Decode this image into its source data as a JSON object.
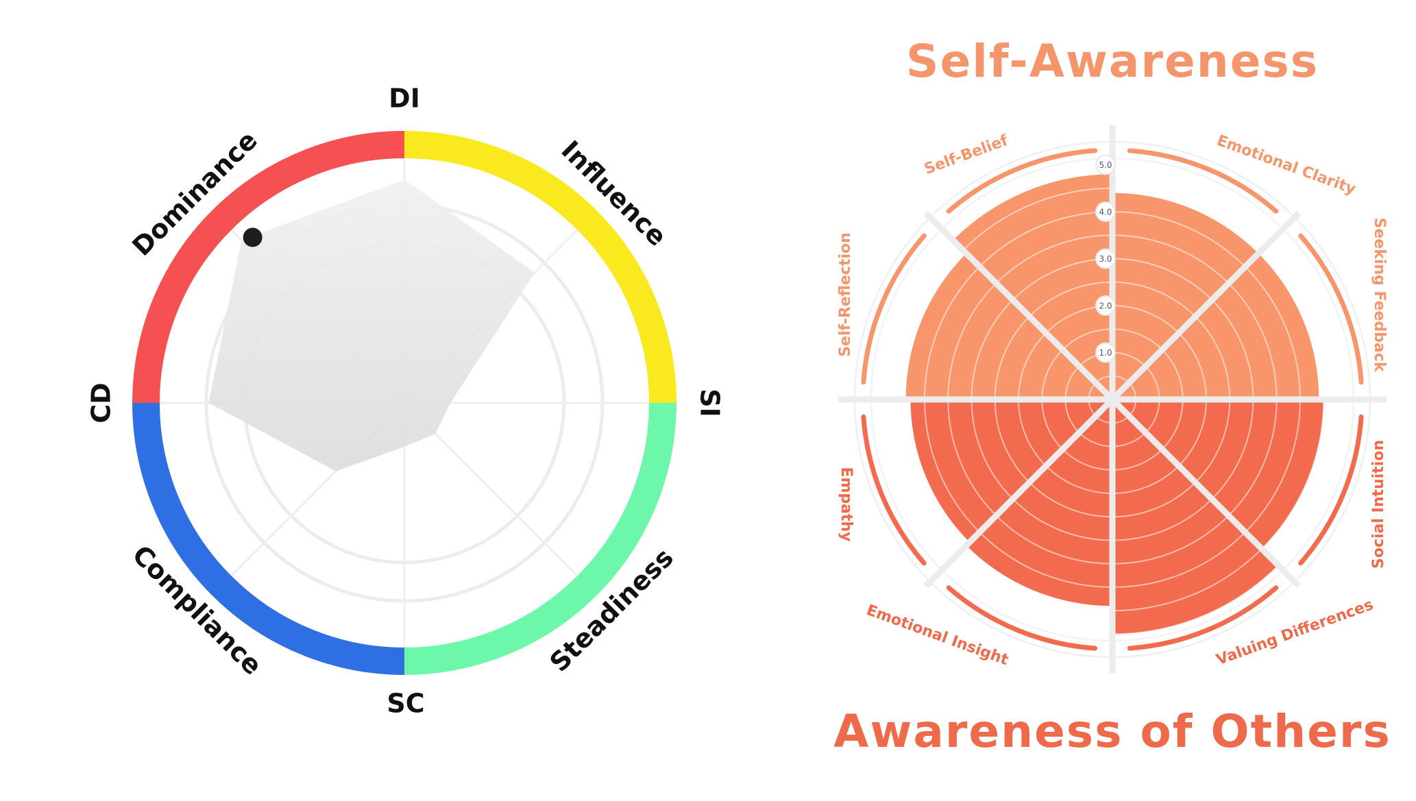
{
  "chart_data": [
    {
      "type": "radar",
      "title": "",
      "axes": [
        "DI",
        "Influence",
        "SI",
        "Steadiness",
        "SC",
        "Compliance",
        "CD",
        "Dominance"
      ],
      "values": [
        97,
        80,
        20,
        19,
        19,
        42,
        85,
        100
      ],
      "range": [
        0,
        100
      ],
      "marker": {
        "axis": "Dominance",
        "value": 92
      },
      "quadrants": [
        {
          "name": "Influence",
          "color": "#FBE91F"
        },
        {
          "name": "Steadiness",
          "color": "#6CF7AA"
        },
        {
          "name": "Compliance",
          "color": "#2E70E4"
        },
        {
          "name": "Dominance",
          "color": "#F55052"
        }
      ],
      "fill_color": "#e2e2e4"
    },
    {
      "type": "polar-bar",
      "title_top": "Self-Awareness",
      "title_bottom": "Awareness of Others",
      "range": [
        0,
        5
      ],
      "ticks": [
        "1.0",
        "2.0",
        "3.0",
        "4.0",
        "5.0"
      ],
      "categories": [
        "Emotional Clarity",
        "Seeking Feedback",
        "Social Intuition",
        "Valuing Differences",
        "Emotional Insight",
        "Empathy",
        "Self-Reflection",
        "Self-Belief"
      ],
      "values": [
        4.4,
        4.4,
        4.5,
        5.0,
        4.4,
        4.3,
        4.4,
        4.8
      ],
      "groups": [
        "top",
        "top",
        "bottom",
        "bottom",
        "bottom",
        "bottom",
        "top",
        "top"
      ],
      "colors": {
        "top": "#F9956B",
        "bottom": "#F26B4E",
        "top_text": "#F4956C",
        "bottom_text": "#EE6A4B"
      }
    }
  ]
}
